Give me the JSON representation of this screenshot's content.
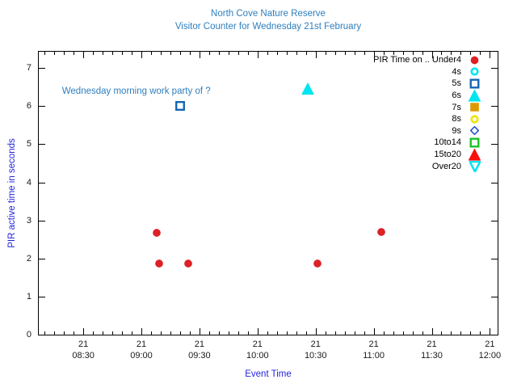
{
  "colors": {
    "title_text": "#2e7ebe",
    "axis_label_text": "#2424dd",
    "tick_text": "#1a1a1a",
    "frame": "#000000",
    "under4_red": "#dc2127",
    "cyan": "#00e5f0",
    "marker_blue": "#1565b5",
    "orange": "#dd9900",
    "yellow": "#f0e400",
    "diamond_blue": "#2150c8",
    "green": "#17c221",
    "triangle_red": "#fb0f0c"
  },
  "chart_data": {
    "type": "scatter",
    "title_line1": "North Cove Nature Reserve",
    "title_line2": "Visitor Counter for Wednesday 21st February",
    "x_axis": {
      "label": "Event Time",
      "min_minutes": 487,
      "max_minutes": 724,
      "minor_tick_interval_minutes": 5,
      "major_ticks": [
        {
          "minutes": 510,
          "line1": "21",
          "line2": "08:30"
        },
        {
          "minutes": 540,
          "line1": "21",
          "line2": "09:00"
        },
        {
          "minutes": 570,
          "line1": "21",
          "line2": "09:30"
        },
        {
          "minutes": 600,
          "line1": "21",
          "line2": "10:00"
        },
        {
          "minutes": 630,
          "line1": "21",
          "line2": "10:30"
        },
        {
          "minutes": 660,
          "line1": "21",
          "line2": "11:00"
        },
        {
          "minutes": 690,
          "line1": "21",
          "line2": "11:30"
        },
        {
          "minutes": 720,
          "line1": "21",
          "line2": "12:00"
        }
      ]
    },
    "y_axis": {
      "label": "PIR active time in seconds",
      "min": 0,
      "max": 7.43,
      "major_ticks": [
        0,
        1,
        2,
        3,
        4,
        5,
        6,
        7
      ]
    },
    "legend": [
      {
        "label": "PIR Time on .. Under4",
        "shape": "circle",
        "filled": true,
        "color": "#dc2127"
      },
      {
        "label": "4s",
        "shape": "circle",
        "filled": false,
        "color": "#00e5f0"
      },
      {
        "label": "5s",
        "shape": "square",
        "filled": false,
        "color": "#1565b5"
      },
      {
        "label": "6s",
        "shape": "triangle-up",
        "filled": true,
        "color": "#00e5f0"
      },
      {
        "label": "7s",
        "shape": "square",
        "filled": true,
        "color": "#dd9900"
      },
      {
        "label": "8s",
        "shape": "circle",
        "filled": false,
        "color": "#f0e400"
      },
      {
        "label": "9s",
        "shape": "diamond",
        "filled": false,
        "color": "#2150c8"
      },
      {
        "label": "10to14",
        "shape": "square",
        "filled": false,
        "color": "#17c221"
      },
      {
        "label": "15to20",
        "shape": "triangle-up",
        "filled": true,
        "color": "#fb0f0c"
      },
      {
        "label": "Over20",
        "shape": "triangle-down",
        "filled": false,
        "color": "#00e5f0"
      }
    ],
    "series": [
      {
        "name": "Under4",
        "shape": "circle",
        "filled": true,
        "color": "#dc2127",
        "points": [
          {
            "time": "09:08",
            "minutes": 548,
            "seconds": 2.68
          },
          {
            "time": "09:09",
            "minutes": 549,
            "seconds": 1.86
          },
          {
            "time": "09:24",
            "minutes": 564,
            "seconds": 1.86
          },
          {
            "time": "10:31",
            "minutes": 631,
            "seconds": 1.86
          },
          {
            "time": "11:04",
            "minutes": 664,
            "seconds": 2.7
          }
        ]
      },
      {
        "name": "5s",
        "shape": "square",
        "filled": false,
        "color": "#1565b5",
        "points": [
          {
            "time": "09:20",
            "minutes": 560,
            "seconds": 6.0
          }
        ]
      },
      {
        "name": "6s",
        "shape": "triangle-up",
        "filled": true,
        "color": "#00e5f0",
        "points": [
          {
            "time": "10:26",
            "minutes": 626,
            "seconds": 6.45
          }
        ]
      }
    ],
    "annotation": {
      "text": "Wednesday morning work party of ?",
      "minutes": 499,
      "seconds": 6.4
    }
  }
}
